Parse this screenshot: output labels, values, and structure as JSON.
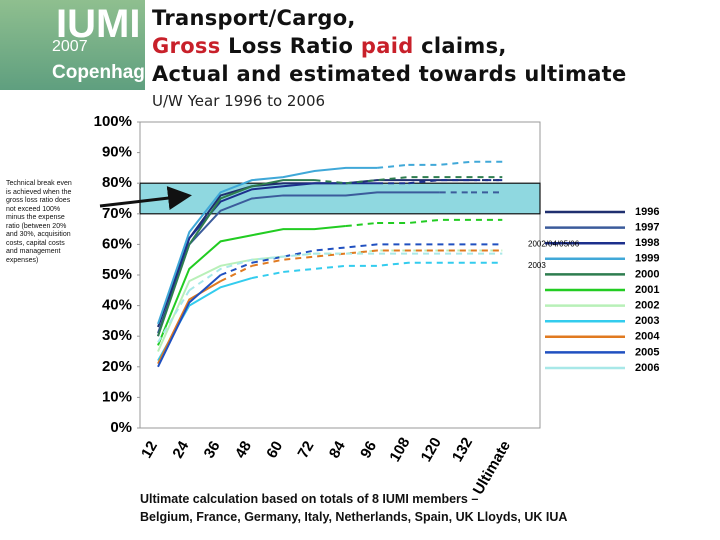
{
  "logo": {
    "name": "IUMI",
    "year": "2007",
    "city": "Copenhagen"
  },
  "chart_data": {
    "type": "line",
    "title": {
      "line1": "Transport/Cargo,",
      "line2": [
        "Gross",
        "Loss Ratio",
        "paid",
        "claims,"
      ],
      "line3": "Actual and estimated towards ultimate"
    },
    "subtitle": "U/W Year 1996 to 2006",
    "note": "Technical break even is achieved when the gross loss ratio does not exceed 100% minus the expense ratio (between 20% and 30%, acquisition costs, capital costs and management expenses)",
    "annotations": [
      {
        "text": "2002/04/05/06",
        "y": 60
      },
      {
        "text": "2003",
        "y": 53
      }
    ],
    "band": [
      70,
      80
    ],
    "band_color": "#8fd8e0",
    "footer": [
      "Ultimate calculation based on totals of 8 IUMI members –",
      "Belgium, France, Germany, Italy, Netherlands, Spain, UK Lloyds, UK IUA"
    ],
    "categories": [
      "12",
      "24",
      "36",
      "48",
      "60",
      "72",
      "84",
      "96",
      "108",
      "120",
      "132",
      "Ultimate"
    ],
    "ylim": [
      0,
      100
    ],
    "yticks": [
      {
        "value": 0,
        "label": "0%"
      },
      {
        "value": 10,
        "label": "10%"
      },
      {
        "value": 20,
        "label": "20%"
      },
      {
        "value": 30,
        "label": "30%"
      },
      {
        "value": 40,
        "label": "40%"
      },
      {
        "value": 50,
        "label": "50%"
      },
      {
        "value": 60,
        "label": "60%"
      },
      {
        "value": 70,
        "label": "70%"
      },
      {
        "value": 80,
        "label": "80%"
      },
      {
        "value": 90,
        "label": "90%"
      },
      {
        "value": 100,
        "label": "100%"
      }
    ],
    "series": [
      {
        "name": "1996",
        "color": "#1f2f6f",
        "values": [
          33,
          62,
          76,
          79,
          80,
          80,
          80,
          81,
          81,
          81,
          81,
          null
        ],
        "estimated": [
          null,
          null,
          null,
          null,
          null,
          null,
          null,
          null,
          null,
          null,
          null,
          81
        ]
      },
      {
        "name": "1997",
        "color": "#3b5b9b",
        "values": [
          31,
          60,
          71,
          75,
          76,
          76,
          76,
          77,
          77,
          77,
          null,
          null
        ],
        "estimated": [
          null,
          null,
          null,
          null,
          null,
          null,
          null,
          null,
          null,
          null,
          77,
          77
        ]
      },
      {
        "name": "1998",
        "color": "#1c2f8c",
        "values": [
          30,
          62,
          74,
          78,
          79,
          80,
          80,
          80,
          null,
          null,
          null,
          null
        ],
        "estimated": [
          null,
          null,
          null,
          null,
          null,
          null,
          null,
          null,
          80,
          81,
          81,
          81
        ]
      },
      {
        "name": "1999",
        "color": "#40a8d8",
        "values": [
          34,
          64,
          77,
          81,
          82,
          84,
          85,
          85,
          null,
          null,
          null,
          null
        ],
        "estimated": [
          null,
          null,
          null,
          null,
          null,
          null,
          null,
          null,
          86,
          86,
          87,
          87
        ]
      },
      {
        "name": "2000",
        "color": "#2e7d4f",
        "values": [
          30,
          60,
          75,
          79,
          81,
          81,
          null,
          null,
          null,
          null,
          null,
          null
        ],
        "estimated": [
          null,
          null,
          null,
          null,
          null,
          null,
          80,
          81,
          82,
          82,
          82,
          82
        ]
      },
      {
        "name": "2001",
        "color": "#22cc22",
        "values": [
          27,
          52,
          61,
          63,
          65,
          65,
          66,
          null,
          null,
          null,
          null,
          null
        ],
        "estimated": [
          null,
          null,
          null,
          null,
          null,
          null,
          null,
          67,
          67,
          68,
          68,
          68
        ]
      },
      {
        "name": "2002",
        "color": "#b8f0b8",
        "values": [
          25,
          48,
          53,
          55,
          56,
          null,
          null,
          null,
          null,
          null,
          null,
          null
        ],
        "estimated": [
          null,
          null,
          null,
          null,
          null,
          57,
          57,
          58,
          58,
          58,
          58,
          58
        ]
      },
      {
        "name": "2003",
        "color": "#33ccee",
        "values": [
          22,
          40,
          46,
          49,
          null,
          null,
          null,
          null,
          null,
          null,
          null,
          null
        ],
        "estimated": [
          null,
          null,
          null,
          null,
          51,
          52,
          53,
          53,
          54,
          54,
          54,
          54
        ]
      },
      {
        "name": "2004",
        "color": "#e07a20",
        "values": [
          21,
          42,
          48,
          null,
          null,
          null,
          null,
          null,
          null,
          null,
          null,
          null
        ],
        "estimated": [
          null,
          null,
          null,
          53,
          55,
          56,
          57,
          58,
          58,
          58,
          58,
          58
        ]
      },
      {
        "name": "2005",
        "color": "#2050c0",
        "values": [
          20,
          41,
          50,
          null,
          null,
          null,
          null,
          null,
          null,
          null,
          null,
          null
        ],
        "estimated": [
          null,
          null,
          null,
          54,
          56,
          58,
          59,
          60,
          60,
          60,
          60,
          60
        ]
      },
      {
        "name": "2006",
        "color": "#a8e8e8",
        "values": [
          28,
          null,
          null,
          null,
          null,
          null,
          null,
          null,
          null,
          null,
          null,
          null
        ],
        "estimated": [
          null,
          45,
          52,
          55,
          56,
          57,
          57,
          57,
          57,
          57,
          57,
          57
        ]
      }
    ]
  }
}
